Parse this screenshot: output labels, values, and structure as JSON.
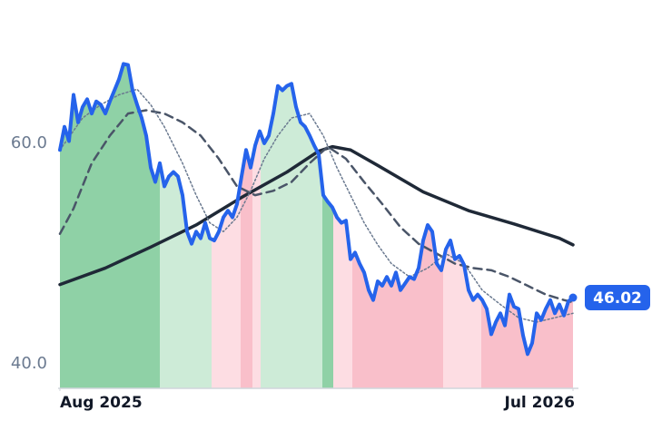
{
  "chart_data": {
    "type": "line",
    "xlim": [
      0,
      113
    ],
    "xticks": [
      {
        "value": 0,
        "label": "Aug 2025"
      },
      {
        "value": 113,
        "label": "Jul 2026"
      }
    ],
    "ylim": [
      37.8,
      69.7
    ],
    "yticks": [
      {
        "value": 40,
        "label": "40.0"
      },
      {
        "value": 60,
        "label": "60.0"
      }
    ],
    "regions": [
      {
        "start": 0,
        "end": 22,
        "color": "#8fd1a6"
      },
      {
        "start": 22,
        "end": 33.4,
        "color": "#cdebd7"
      },
      {
        "start": 33.4,
        "end": 39.8,
        "color": "#fddde3"
      },
      {
        "start": 39.8,
        "end": 42.4,
        "color": "#f9bfca"
      },
      {
        "start": 42.4,
        "end": 44.2,
        "color": "#fddde3"
      },
      {
        "start": 44.2,
        "end": 57.8,
        "color": "#cdebd7"
      },
      {
        "start": 57.8,
        "end": 60.2,
        "color": "#8fd1a6"
      },
      {
        "start": 60.2,
        "end": 64.4,
        "color": "#fddde3"
      },
      {
        "start": 64.4,
        "end": 84.4,
        "color": "#f9bfca"
      },
      {
        "start": 84.4,
        "end": 92.8,
        "color": "#fddde3"
      },
      {
        "start": 92.8,
        "end": 113.4,
        "color": "#f9bfca"
      }
    ],
    "series": [
      {
        "color": "#1f2937",
        "style": "solid",
        "width": 3.5,
        "x": [
          0,
          10,
          20,
          30,
          40,
          50,
          57,
          60,
          64,
          70,
          80,
          90,
          100,
          110,
          113
        ],
        "values": [
          47.2,
          48.7,
          50.6,
          52.6,
          55.1,
          57.4,
          59.3,
          59.7,
          59.4,
          58.0,
          55.6,
          53.9,
          52.7,
          51.4,
          50.8
        ]
      },
      {
        "color": "#4a5568",
        "style": "dashed",
        "width": 2.5,
        "x": [
          0,
          3,
          7,
          11,
          15,
          19,
          23,
          27,
          31,
          35,
          39,
          43,
          47,
          51,
          55,
          59,
          63,
          67,
          71,
          75,
          79,
          83,
          87,
          91,
          95,
          99,
          103,
          107,
          111,
          113
        ],
        "values": [
          51.8,
          54.1,
          58.2,
          60.7,
          62.7,
          63.0,
          62.7,
          61.9,
          60.7,
          58.6,
          56.1,
          55.3,
          55.7,
          56.5,
          58.2,
          59.7,
          58.6,
          56.5,
          54.5,
          52.4,
          50.9,
          50.0,
          49.1,
          48.7,
          48.5,
          47.9,
          47.1,
          46.3,
          45.8,
          45.6
        ]
      },
      {
        "color": "#6b7a90",
        "style": "dotted",
        "width": 1.5,
        "x": [
          0,
          5,
          9,
          13,
          17,
          20,
          23,
          27,
          30,
          33,
          36,
          39,
          42,
          45,
          48,
          51,
          55,
          58,
          61,
          64,
          67,
          70,
          73,
          77,
          81,
          85,
          89,
          93,
          97,
          101,
          105,
          109,
          113
        ],
        "values": [
          59.4,
          62.3,
          63.5,
          64.4,
          64.9,
          63.5,
          61.5,
          58.2,
          55.3,
          52.8,
          52.0,
          53.3,
          55.7,
          58.6,
          60.7,
          62.3,
          62.7,
          60.7,
          57.8,
          55.3,
          52.8,
          50.8,
          49.1,
          47.9,
          48.7,
          50.0,
          49.1,
          46.7,
          45.4,
          44.2,
          43.8,
          44.2,
          44.6
        ]
      },
      {
        "color": "#2563eb",
        "style": "price",
        "width": 4,
        "values": [
          59.4,
          61.5,
          60.2,
          64.4,
          61.9,
          63.3,
          64.0,
          62.7,
          63.8,
          63.5,
          62.7,
          63.8,
          64.8,
          65.8,
          67.2,
          67.1,
          64.8,
          63.5,
          62.3,
          60.7,
          57.8,
          56.5,
          58.2,
          56.1,
          57.0,
          57.4,
          57.0,
          55.3,
          52.0,
          50.9,
          52.0,
          51.4,
          52.8,
          51.4,
          51.2,
          52.0,
          53.3,
          53.9,
          53.3,
          54.5,
          57.0,
          59.4,
          57.8,
          59.8,
          61.1,
          60.0,
          60.7,
          62.7,
          65.2,
          64.8,
          65.2,
          65.4,
          63.3,
          61.9,
          61.5,
          60.7,
          59.8,
          59.0,
          55.3,
          54.7,
          54.2,
          53.3,
          52.8,
          53.0,
          49.5,
          50.1,
          49.1,
          48.3,
          46.7,
          45.8,
          47.5,
          47.1,
          47.9,
          47.1,
          48.3,
          46.7,
          47.3,
          47.9,
          47.7,
          48.7,
          51.2,
          52.6,
          52.0,
          49.1,
          48.5,
          50.4,
          51.2,
          49.5,
          49.8,
          49.0,
          46.7,
          45.8,
          46.3,
          45.8,
          45.0,
          42.7,
          43.8,
          44.6,
          43.5,
          46.3,
          45.2,
          45.0,
          42.6,
          40.9,
          41.9,
          44.6,
          44.0,
          45.0,
          45.8,
          44.6,
          45.4,
          44.4,
          45.7,
          46.02
        ]
      }
    ]
  }
}
